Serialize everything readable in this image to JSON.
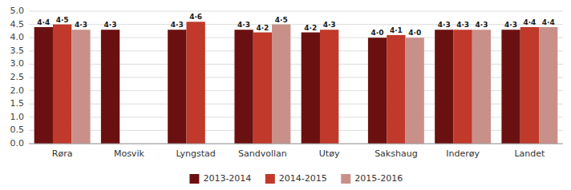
{
  "chart_data": {
    "type": "bar",
    "categories": [
      "Røra",
      "Mosvik",
      "Lyngstad",
      "Sandvollan",
      "Utøy",
      "Sakshaug",
      "Inderøy",
      "Landet"
    ],
    "series": [
      {
        "name": "2013-2014",
        "color": "#6b1010",
        "values": [
          4.4,
          4.3,
          4.3,
          4.3,
          4.2,
          4.0,
          4.3,
          4.3
        ],
        "value_labels": [
          "4·4",
          "4·3",
          "4·3",
          "4·3",
          "4·2",
          "4·0",
          "4·3",
          "4·3"
        ]
      },
      {
        "name": "2014-2015",
        "color": "#c0392b",
        "values": [
          4.5,
          null,
          4.6,
          4.2,
          4.3,
          4.1,
          4.3,
          4.4
        ],
        "value_labels": [
          "4·5",
          null,
          "4·6",
          "4·2",
          "4·3",
          "4·1",
          "4·3",
          "4·4"
        ]
      },
      {
        "name": "2015-2016",
        "color": "#c9908a",
        "values": [
          4.3,
          null,
          null,
          4.5,
          null,
          4.0,
          4.3,
          4.4
        ],
        "value_labels": [
          "4·3",
          null,
          null,
          "4·5",
          null,
          "4·0",
          "4·3",
          "4·4"
        ]
      }
    ],
    "ylim": [
      0.0,
      5.0
    ],
    "yticks": [
      {
        "value": 0,
        "label": "0.0"
      },
      0.5,
      {
        "value": 1,
        "label": "1.0"
      },
      1.5,
      {
        "value": 2,
        "label": "2.0"
      },
      2.5,
      {
        "value": 3,
        "label": "3.0"
      },
      3.5,
      {
        "value": 4,
        "label": "4.0"
      },
      4.5,
      {
        "value": 5,
        "label": "5.0"
      }
    ],
    "grid": true,
    "data_labels": true,
    "legend": "bottom"
  }
}
